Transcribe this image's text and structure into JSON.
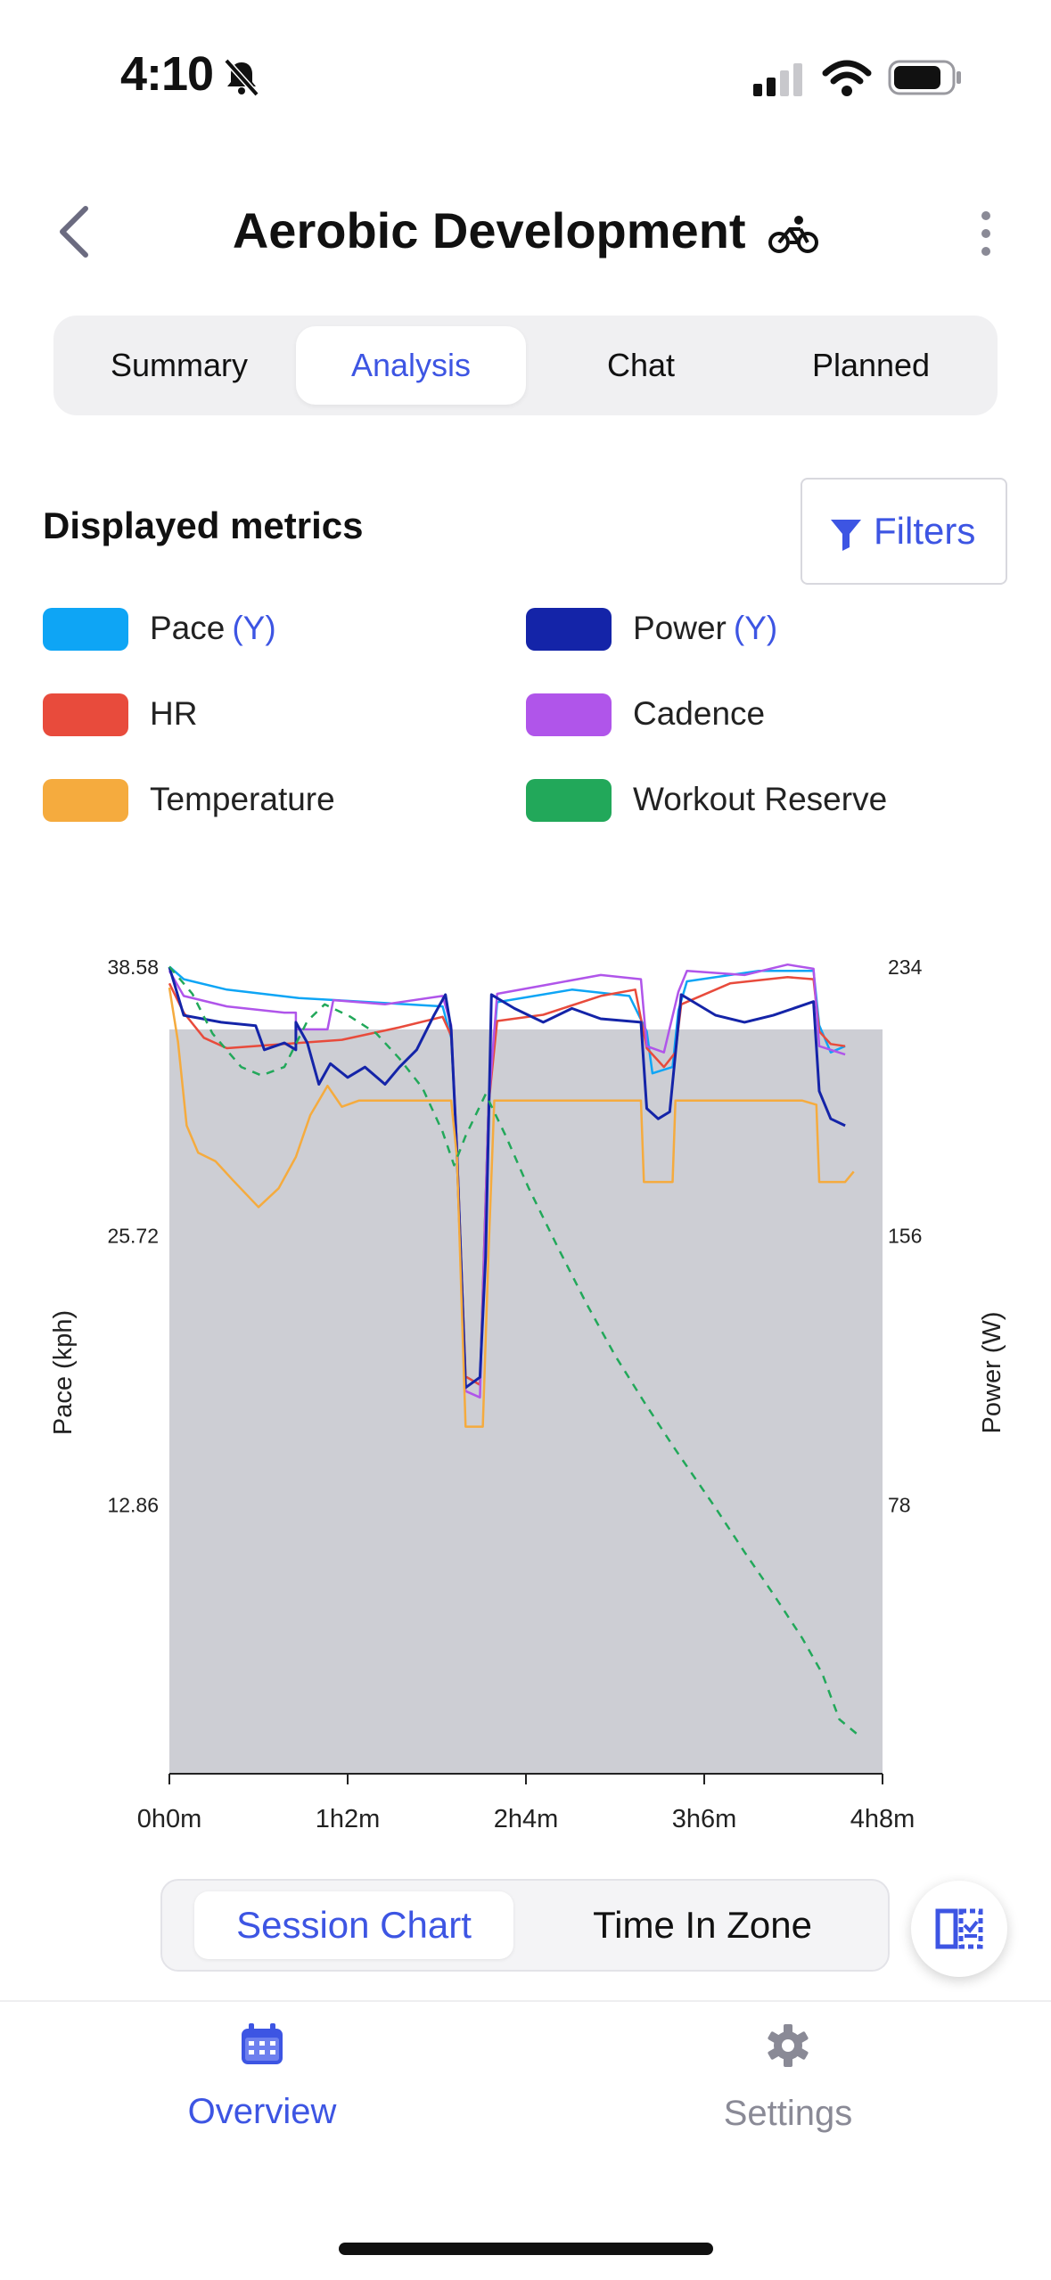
{
  "status": {
    "time": "4:10"
  },
  "header": {
    "title": "Aerobic Development"
  },
  "tabs": [
    {
      "label": "Summary",
      "active": false
    },
    {
      "label": "Analysis",
      "active": true
    },
    {
      "label": "Chat",
      "active": false
    },
    {
      "label": "Planned",
      "active": false
    }
  ],
  "metrics": {
    "title": "Displayed metrics",
    "filters_label": "Filters",
    "items": [
      {
        "label": "Pace",
        "axis": "(Y)",
        "color": "#0ea5f5"
      },
      {
        "label": "Power",
        "axis": "(Y)",
        "color": "#1424a8"
      },
      {
        "label": "HR",
        "axis": "",
        "color": "#e84b3c"
      },
      {
        "label": "Cadence",
        "axis": "",
        "color": "#b055ea"
      },
      {
        "label": "Temperature",
        "axis": "",
        "color": "#f5ab3e"
      },
      {
        "label": "Workout Reserve",
        "axis": "",
        "color": "#22a85a"
      }
    ]
  },
  "chart_data": {
    "type": "line",
    "ylabel": "Pace (kph)",
    "ylabel_right": "Power (W)",
    "x_ticks": [
      "0h0m",
      "1h2m",
      "2h4m",
      "3h6m",
      "4h8m"
    ],
    "y_left_ticks": [
      "38.58",
      "25.72",
      "12.86"
    ],
    "y_right_ticks": [
      "234",
      "156",
      "78"
    ],
    "xlim_minutes": [
      0,
      248
    ],
    "ylim_left": [
      0,
      38.58
    ],
    "ylim_right": [
      0,
      234
    ],
    "shaded_region": {
      "y_max_left": 35.6
    },
    "series": [
      {
        "name": "Pace",
        "color": "#0ea5f5",
        "axis": "left",
        "style": "solid",
        "points": [
          [
            0,
            38.6
          ],
          [
            5,
            38.0
          ],
          [
            20,
            37.5
          ],
          [
            45,
            37.1
          ],
          [
            70,
            36.9
          ],
          [
            95,
            36.7
          ],
          [
            98,
            35.2
          ],
          [
            100,
            30.0
          ],
          [
            103,
            19.0
          ],
          [
            108,
            18.6
          ],
          [
            111,
            32.0
          ],
          [
            114,
            36.9
          ],
          [
            140,
            37.5
          ],
          [
            160,
            37.2
          ],
          [
            166,
            35.5
          ],
          [
            168,
            33.5
          ],
          [
            175,
            33.8
          ],
          [
            177,
            36.5
          ],
          [
            180,
            37.9
          ],
          [
            205,
            38.4
          ],
          [
            224,
            38.4
          ],
          [
            226,
            35.8
          ],
          [
            230,
            34.5
          ],
          [
            235,
            34.8
          ]
        ]
      },
      {
        "name": "HR",
        "color": "#e84b3c",
        "axis": "left",
        "style": "solid",
        "points": [
          [
            0,
            37.8
          ],
          [
            5,
            36.4
          ],
          [
            12,
            35.2
          ],
          [
            20,
            34.7
          ],
          [
            40,
            34.9
          ],
          [
            60,
            35.1
          ],
          [
            80,
            35.7
          ],
          [
            95,
            36.2
          ],
          [
            98,
            35.3
          ],
          [
            100,
            30.0
          ],
          [
            103,
            19.0
          ],
          [
            108,
            18.6
          ],
          [
            111,
            32.0
          ],
          [
            114,
            36.0
          ],
          [
            130,
            36.3
          ],
          [
            150,
            37.2
          ],
          [
            162,
            37.5
          ],
          [
            166,
            34.7
          ],
          [
            172,
            33.8
          ],
          [
            176,
            34.5
          ],
          [
            178,
            36.8
          ],
          [
            195,
            37.8
          ],
          [
            215,
            38.1
          ],
          [
            224,
            38.0
          ],
          [
            226,
            35.5
          ],
          [
            230,
            34.9
          ],
          [
            235,
            34.8
          ]
        ]
      },
      {
        "name": "Cadence",
        "color": "#b055ea",
        "axis": "left",
        "style": "solid",
        "points": [
          [
            0,
            38.4
          ],
          [
            5,
            37.2
          ],
          [
            20,
            36.7
          ],
          [
            40,
            36.4
          ],
          [
            44,
            36.4
          ],
          [
            44,
            35.6
          ],
          [
            55,
            35.6
          ],
          [
            57,
            37.0
          ],
          [
            75,
            36.8
          ],
          [
            95,
            37.2
          ],
          [
            98,
            35.8
          ],
          [
            100,
            30.0
          ],
          [
            103,
            18.3
          ],
          [
            108,
            18.0
          ],
          [
            111,
            32.0
          ],
          [
            114,
            37.3
          ],
          [
            130,
            37.7
          ],
          [
            150,
            38.2
          ],
          [
            164,
            38.0
          ],
          [
            166,
            34.8
          ],
          [
            172,
            34.5
          ],
          [
            177,
            37.4
          ],
          [
            180,
            38.4
          ],
          [
            200,
            38.2
          ],
          [
            215,
            38.7
          ],
          [
            224,
            38.5
          ],
          [
            226,
            34.8
          ],
          [
            235,
            34.4
          ]
        ]
      },
      {
        "name": "Power",
        "color": "#1424a8",
        "axis": "right",
        "style": "solid",
        "points": [
          [
            0,
            234
          ],
          [
            5,
            220
          ],
          [
            18,
            218
          ],
          [
            30,
            217
          ],
          [
            33,
            210
          ],
          [
            40,
            212
          ],
          [
            44,
            210
          ],
          [
            44,
            218
          ],
          [
            48,
            212
          ],
          [
            52,
            200
          ],
          [
            56,
            206
          ],
          [
            62,
            202
          ],
          [
            68,
            205
          ],
          [
            75,
            200
          ],
          [
            80,
            205
          ],
          [
            86,
            210
          ],
          [
            92,
            220
          ],
          [
            96,
            226
          ],
          [
            98,
            216
          ],
          [
            100,
            180
          ],
          [
            103,
            112
          ],
          [
            108,
            115
          ],
          [
            110,
            150
          ],
          [
            112,
            226
          ],
          [
            114,
            225
          ],
          [
            120,
            222
          ],
          [
            130,
            218
          ],
          [
            140,
            222
          ],
          [
            150,
            219
          ],
          [
            164,
            218
          ],
          [
            166,
            193
          ],
          [
            170,
            190
          ],
          [
            174,
            192
          ],
          [
            178,
            226
          ],
          [
            190,
            220
          ],
          [
            200,
            218
          ],
          [
            210,
            220
          ],
          [
            224,
            224
          ],
          [
            226,
            198
          ],
          [
            230,
            190
          ],
          [
            235,
            188
          ]
        ]
      },
      {
        "name": "Temperature",
        "color": "#f5ab3e",
        "axis": "left",
        "style": "solid",
        "points": [
          [
            0,
            37.6
          ],
          [
            3,
            35.0
          ],
          [
            6,
            31.0
          ],
          [
            10,
            29.7
          ],
          [
            16,
            29.3
          ],
          [
            22,
            28.4
          ],
          [
            31,
            27.1
          ],
          [
            38,
            28.0
          ],
          [
            44,
            29.5
          ],
          [
            49,
            31.5
          ],
          [
            55,
            32.9
          ],
          [
            60,
            31.9
          ],
          [
            66,
            32.2
          ],
          [
            80,
            32.2
          ],
          [
            98,
            32.2
          ],
          [
            100,
            29.5
          ],
          [
            103,
            16.6
          ],
          [
            109,
            16.6
          ],
          [
            111,
            25.0
          ],
          [
            113,
            32.2
          ],
          [
            164,
            32.2
          ],
          [
            165,
            28.3
          ],
          [
            175,
            28.3
          ],
          [
            176,
            32.2
          ],
          [
            220,
            32.2
          ],
          [
            225,
            32.0
          ],
          [
            226,
            28.3
          ],
          [
            235,
            28.3
          ],
          [
            238,
            28.8
          ]
        ]
      },
      {
        "name": "Workout Reserve",
        "color": "#22a85a",
        "axis": "left",
        "style": "dashed",
        "points": [
          [
            0,
            38.6
          ],
          [
            8,
            37.3
          ],
          [
            15,
            35.4
          ],
          [
            25,
            33.8
          ],
          [
            32,
            33.4
          ],
          [
            40,
            33.8
          ],
          [
            48,
            36.0
          ],
          [
            54,
            36.8
          ],
          [
            63,
            36.2
          ],
          [
            72,
            35.4
          ],
          [
            80,
            34.2
          ],
          [
            88,
            32.8
          ],
          [
            95,
            30.7
          ],
          [
            99,
            29.1
          ],
          [
            103,
            30.5
          ],
          [
            110,
            32.5
          ],
          [
            117,
            30.5
          ],
          [
            125,
            28.0
          ],
          [
            135,
            25.2
          ],
          [
            145,
            22.5
          ],
          [
            155,
            20.0
          ],
          [
            165,
            17.8
          ],
          [
            175,
            15.7
          ],
          [
            180,
            14.7
          ],
          [
            190,
            12.7
          ],
          [
            200,
            10.6
          ],
          [
            210,
            8.6
          ],
          [
            220,
            6.5
          ],
          [
            227,
            4.8
          ],
          [
            233,
            2.6
          ],
          [
            240,
            1.8
          ]
        ]
      }
    ]
  },
  "chart_tabs": [
    {
      "label": "Session Chart",
      "active": true
    },
    {
      "label": "Time In Zone",
      "active": false
    }
  ],
  "nav": [
    {
      "label": "Overview",
      "active": true,
      "icon": "calendar-icon"
    },
    {
      "label": "Settings",
      "active": false,
      "icon": "gear-icon"
    }
  ]
}
